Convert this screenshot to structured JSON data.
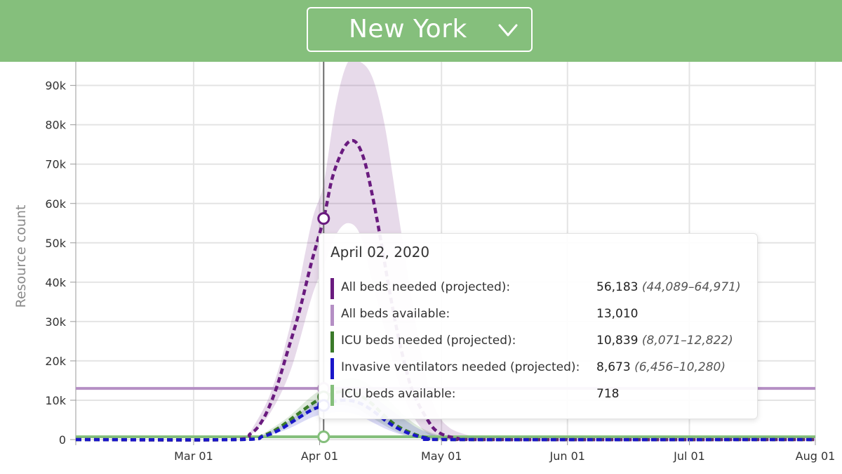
{
  "header": {
    "location": "New York",
    "chevron_icon": "chevron-down-icon"
  },
  "chart_data": {
    "type": "line",
    "ylabel": "Resource count",
    "ylim": [
      0,
      96000
    ],
    "y_ticks": [
      0,
      10000,
      20000,
      30000,
      40000,
      50000,
      60000,
      70000,
      80000,
      90000
    ],
    "y_tick_labels": [
      "0",
      "10k",
      "20k",
      "30k",
      "40k",
      "50k",
      "60k",
      "70k",
      "80k",
      "90k"
    ],
    "x_range": [
      "2020-02-01",
      "2020-08-01"
    ],
    "x_ticks": [
      "2020-03-01",
      "2020-04-01",
      "2020-05-01",
      "2020-06-01",
      "2020-07-01",
      "2020-08-01"
    ],
    "x_tick_labels": [
      "Mar 01",
      "Apr 01",
      "May 01",
      "Jun 01",
      "Jul 01",
      "Aug 01"
    ],
    "grid": true,
    "cursor_date": "2020-04-02",
    "series": [
      {
        "name": "All beds needed (projected)",
        "color": "#6a1b7f",
        "style": "dashed",
        "points": [
          [
            "2020-02-01",
            0
          ],
          [
            "2020-03-10",
            0
          ],
          [
            "2020-03-15",
            1500
          ],
          [
            "2020-03-18",
            5000
          ],
          [
            "2020-03-21",
            12000
          ],
          [
            "2020-03-24",
            22000
          ],
          [
            "2020-03-27",
            32500
          ],
          [
            "2020-03-30",
            45000
          ],
          [
            "2020-04-02",
            56183
          ],
          [
            "2020-04-04",
            66000
          ],
          [
            "2020-04-06",
            72000
          ],
          [
            "2020-04-08",
            75500
          ],
          [
            "2020-04-10",
            75500
          ],
          [
            "2020-04-12",
            71000
          ],
          [
            "2020-04-14",
            62000
          ],
          [
            "2020-04-16",
            51000
          ],
          [
            "2020-04-18",
            39000
          ],
          [
            "2020-04-20",
            28000
          ],
          [
            "2020-04-22",
            19000
          ],
          [
            "2020-04-24",
            12000
          ],
          [
            "2020-04-27",
            6000
          ],
          [
            "2020-04-30",
            2000
          ],
          [
            "2020-05-05",
            300
          ],
          [
            "2020-05-12",
            0
          ],
          [
            "2020-08-01",
            0
          ]
        ],
        "band": [
          [
            "2020-03-15",
            1000,
            2000
          ],
          [
            "2020-03-20",
            7000,
            12000
          ],
          [
            "2020-03-25",
            18000,
            30000
          ],
          [
            "2020-03-30",
            36000,
            55000
          ],
          [
            "2020-04-02",
            44089,
            64971
          ],
          [
            "2020-04-05",
            52000,
            85000
          ],
          [
            "2020-04-08",
            55000,
            96000
          ],
          [
            "2020-04-11",
            52000,
            96000
          ],
          [
            "2020-04-14",
            40000,
            92000
          ],
          [
            "2020-04-17",
            28000,
            80000
          ],
          [
            "2020-04-20",
            16000,
            60000
          ],
          [
            "2020-04-23",
            8000,
            40000
          ],
          [
            "2020-04-26",
            3000,
            22000
          ],
          [
            "2020-04-29",
            800,
            9000
          ],
          [
            "2020-05-03",
            100,
            3000
          ],
          [
            "2020-05-10",
            0,
            500
          ]
        ]
      },
      {
        "name": "All beds available",
        "color": "#b58fc4",
        "style": "solid",
        "points": [
          [
            "2020-02-01",
            13010
          ],
          [
            "2020-08-01",
            13010
          ]
        ]
      },
      {
        "name": "ICU beds needed (projected)",
        "color": "#3a7a2a",
        "style": "dashed",
        "points": [
          [
            "2020-02-01",
            0
          ],
          [
            "2020-03-12",
            0
          ],
          [
            "2020-03-18",
            1000
          ],
          [
            "2020-03-22",
            3000
          ],
          [
            "2020-03-26",
            6000
          ],
          [
            "2020-03-30",
            9000
          ],
          [
            "2020-04-02",
            10839
          ],
          [
            "2020-04-05",
            12000
          ],
          [
            "2020-04-08",
            12200
          ],
          [
            "2020-04-11",
            11200
          ],
          [
            "2020-04-14",
            9000
          ],
          [
            "2020-04-17",
            6000
          ],
          [
            "2020-04-20",
            3500
          ],
          [
            "2020-04-24",
            1500
          ],
          [
            "2020-04-28",
            400
          ],
          [
            "2020-05-05",
            0
          ],
          [
            "2020-08-01",
            0
          ]
        ],
        "band": [
          [
            "2020-03-18",
            700,
            1400
          ],
          [
            "2020-03-24",
            3200,
            5500
          ],
          [
            "2020-03-30",
            7000,
            11000
          ],
          [
            "2020-04-02",
            8071,
            12822
          ],
          [
            "2020-04-06",
            8800,
            15000
          ],
          [
            "2020-04-10",
            8000,
            15500
          ],
          [
            "2020-04-14",
            5500,
            13500
          ],
          [
            "2020-04-18",
            3000,
            10000
          ],
          [
            "2020-04-22",
            1200,
            6000
          ],
          [
            "2020-04-26",
            400,
            3000
          ],
          [
            "2020-05-01",
            50,
            1000
          ],
          [
            "2020-05-08",
            0,
            200
          ]
        ]
      },
      {
        "name": "Invasive ventilators needed (projected)",
        "color": "#1a16c9",
        "style": "dashed",
        "points": [
          [
            "2020-02-01",
            0
          ],
          [
            "2020-03-12",
            0
          ],
          [
            "2020-03-18",
            800
          ],
          [
            "2020-03-22",
            2400
          ],
          [
            "2020-03-26",
            5000
          ],
          [
            "2020-03-30",
            7500
          ],
          [
            "2020-04-02",
            8673
          ],
          [
            "2020-04-05",
            9800
          ],
          [
            "2020-04-08",
            10000
          ],
          [
            "2020-04-11",
            9200
          ],
          [
            "2020-04-14",
            7400
          ],
          [
            "2020-04-17",
            5000
          ],
          [
            "2020-04-20",
            3000
          ],
          [
            "2020-04-24",
            1200
          ],
          [
            "2020-04-28",
            300
          ],
          [
            "2020-05-05",
            0
          ],
          [
            "2020-08-01",
            0
          ]
        ],
        "band": [
          [
            "2020-03-18",
            500,
            1100
          ],
          [
            "2020-03-24",
            2600,
            4500
          ],
          [
            "2020-03-30",
            5600,
            9000
          ],
          [
            "2020-04-02",
            6456,
            10280
          ],
          [
            "2020-04-06",
            7000,
            12200
          ],
          [
            "2020-04-10",
            6400,
            12600
          ],
          [
            "2020-04-14",
            4400,
            11000
          ],
          [
            "2020-04-18",
            2400,
            8000
          ],
          [
            "2020-04-22",
            1000,
            5000
          ],
          [
            "2020-04-26",
            300,
            2500
          ],
          [
            "2020-05-01",
            50,
            800
          ],
          [
            "2020-05-08",
            0,
            150
          ]
        ]
      },
      {
        "name": "ICU beds available",
        "color": "#85bf7c",
        "style": "solid",
        "points": [
          [
            "2020-02-01",
            718
          ],
          [
            "2020-08-01",
            718
          ]
        ]
      }
    ]
  },
  "tooltip": {
    "date": "April 02, 2020",
    "rows": [
      {
        "name": "All beds needed (projected):",
        "value": "56,183",
        "range": "(44,089–64,971)",
        "color": "#6a1b7f"
      },
      {
        "name": "All beds available:",
        "value": "13,010",
        "range": "",
        "color": "#b58fc4"
      },
      {
        "name": "ICU beds needed (projected):",
        "value": "10,839",
        "range": "(8,071–12,822)",
        "color": "#3a7a2a"
      },
      {
        "name": "Invasive ventilators needed (projected):",
        "value": "8,673",
        "range": "(6,456–10,280)",
        "color": "#1a16c9"
      },
      {
        "name": "ICU beds available:",
        "value": "718",
        "range": "",
        "color": "#85bf7c"
      }
    ]
  }
}
